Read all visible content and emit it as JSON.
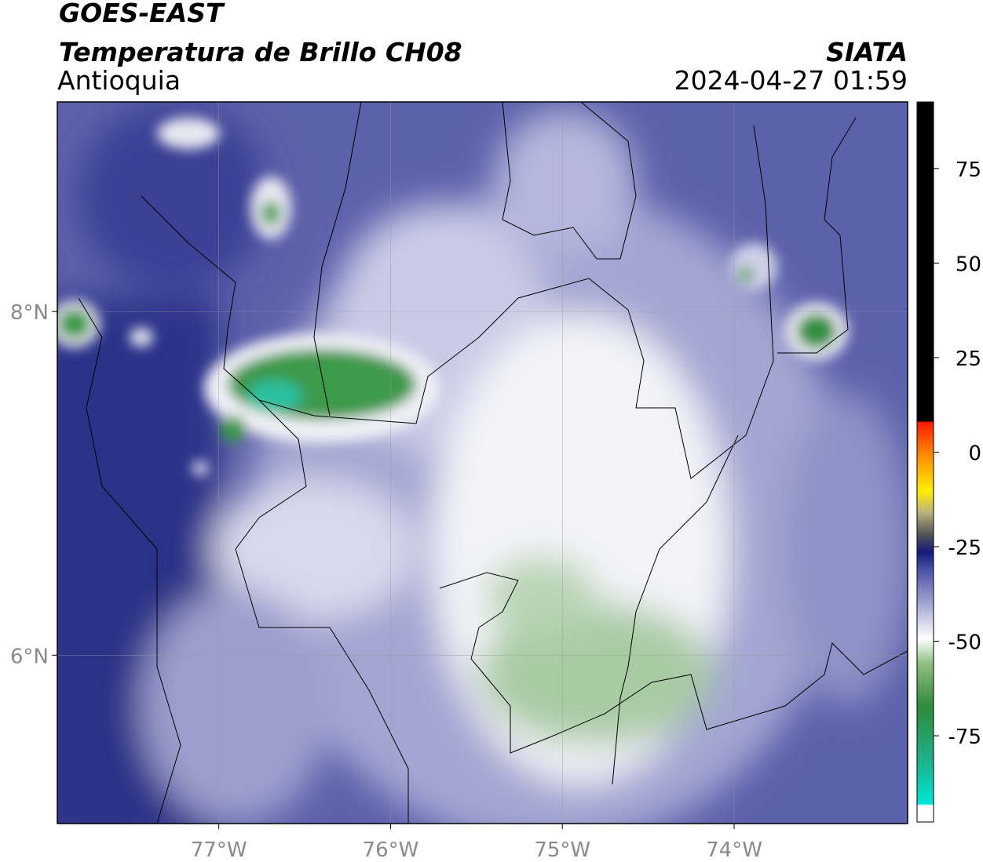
{
  "header": {
    "satellite": "GOES-EAST",
    "product": "Temperatura de Brillo CH08",
    "region": "Antioquia",
    "source": "SIATA",
    "datetime": "2024-04-27 01:59"
  },
  "map": {
    "xlim": [
      -77.94,
      -72.99
    ],
    "ylim": [
      5.02,
      9.22
    ],
    "xticks": [
      {
        "value": -77,
        "label": "77°W"
      },
      {
        "value": -76,
        "label": "76°W"
      },
      {
        "value": -75,
        "label": "75°W"
      },
      {
        "value": -74,
        "label": "74°W"
      }
    ],
    "yticks": [
      {
        "value": 6,
        "label": "6°N"
      },
      {
        "value": 8,
        "label": "8°N"
      }
    ]
  },
  "colorbar": {
    "lim": [
      -97.8,
      92.6
    ],
    "ticks": [
      -75,
      -50,
      -25,
      0,
      25,
      50,
      75
    ]
  }
}
